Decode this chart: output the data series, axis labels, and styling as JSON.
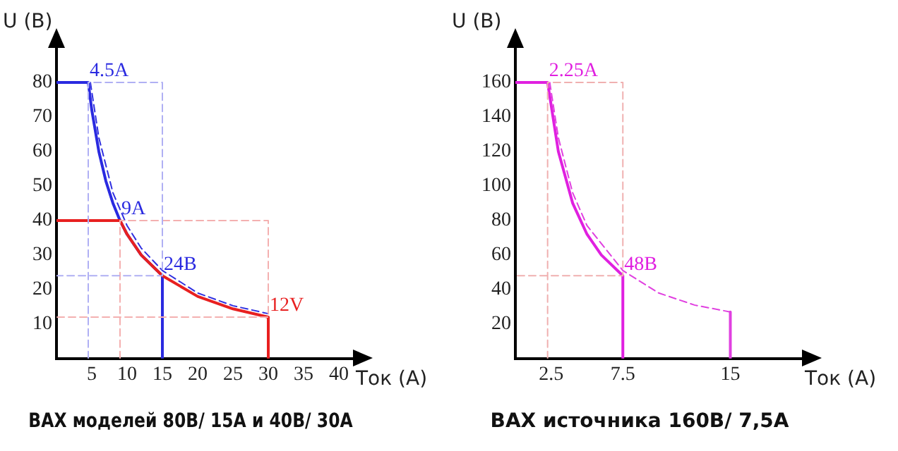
{
  "chart_data": [
    {
      "type": "line",
      "title": "ВАХ моделей 80В/ 15А и 40В/ 30А",
      "xlabel": "Ток (А)",
      "ylabel": "U (В)",
      "xlim": [
        0,
        42
      ],
      "ylim": [
        0,
        90
      ],
      "xticks": [
        5,
        10,
        15,
        20,
        25,
        30,
        35,
        40
      ],
      "yticks": [
        10,
        20,
        30,
        40,
        50,
        60,
        70,
        80
      ],
      "grid": false,
      "legend": false,
      "marker": "none",
      "annotations": [
        {
          "text": "4.5A",
          "x": 4.5,
          "y": 80
        },
        {
          "text": "9A",
          "x": 9,
          "y": 40
        },
        {
          "text": "24В",
          "x": 15,
          "y": 24
        },
        {
          "text": "12V",
          "x": 30,
          "y": 12
        }
      ],
      "series": [
        {
          "color": "#b0b0f4",
          "line_style": "dashed",
          "x": [
            4.5,
            4.5,
            15,
            15,
            0
          ],
          "values": [
            0,
            80,
            80,
            24,
            24
          ]
        },
        {
          "color": "#f4b0b0",
          "line_style": "dashed",
          "x": [
            9,
            9,
            30,
            30,
            0
          ],
          "values": [
            0,
            40,
            40,
            12,
            12
          ]
        },
        {
          "color": "#3030e0",
          "line_style": "dashed",
          "x": [
            4.8,
            6,
            8,
            10,
            12,
            15,
            20,
            25,
            30
          ],
          "values": [
            80,
            64,
            48,
            38.5,
            32,
            25.5,
            19,
            15.3,
            13
          ]
        },
        {
          "color": "#e82020",
          "line_style": "solid",
          "x": [
            0,
            9,
            10,
            12,
            15,
            20,
            25,
            30,
            30
          ],
          "values": [
            40,
            40,
            36,
            30,
            24,
            18,
            14.4,
            12,
            0
          ]
        },
        {
          "color": "#2a2ae0",
          "line_style": "solid",
          "x": [
            0,
            4.5,
            5,
            6,
            7,
            8,
            9,
            10,
            12,
            15,
            15
          ],
          "values": [
            80,
            80,
            72,
            60,
            51.4,
            45,
            40,
            36,
            30,
            24,
            0
          ]
        }
      ]
    },
    {
      "type": "line",
      "title": "ВАХ источника 160В/ 7,5А",
      "xlabel": "Ток (А)",
      "ylabel": "U (В)",
      "xlim": [
        0,
        20
      ],
      "ylim": [
        0,
        180
      ],
      "xticks": [
        2.5,
        7.5,
        15
      ],
      "yticks": [
        20,
        40,
        60,
        80,
        100,
        120,
        140,
        160
      ],
      "grid": false,
      "legend": false,
      "marker": "none",
      "annotations": [
        {
          "text": "2.25A",
          "x": 2.25,
          "y": 160
        },
        {
          "text": "48В",
          "x": 7.5,
          "y": 48
        }
      ],
      "series": [
        {
          "color": "#f0b0b0",
          "line_style": "dashed",
          "x": [
            2.25,
            2.25,
            7.5,
            7.5,
            0
          ],
          "values": [
            0,
            160,
            160,
            48,
            48
          ]
        },
        {
          "color": "#e040e0",
          "line_style": "dashed",
          "x": [
            2.4,
            3,
            4,
            5,
            7.5,
            10,
            12.5,
            15
          ],
          "values": [
            160,
            128,
            96,
            77,
            51,
            38,
            31,
            27
          ]
        },
        {
          "color": "#e040e0",
          "line_style": "solid",
          "x": [
            15,
            15
          ],
          "values": [
            27,
            0
          ]
        },
        {
          "color": "#e020e0",
          "line_style": "solid",
          "x": [
            0,
            2.25,
            3,
            4,
            5,
            6,
            7.5,
            7.5
          ],
          "values": [
            160,
            160,
            120,
            90,
            72,
            60,
            48,
            0
          ]
        }
      ]
    }
  ]
}
